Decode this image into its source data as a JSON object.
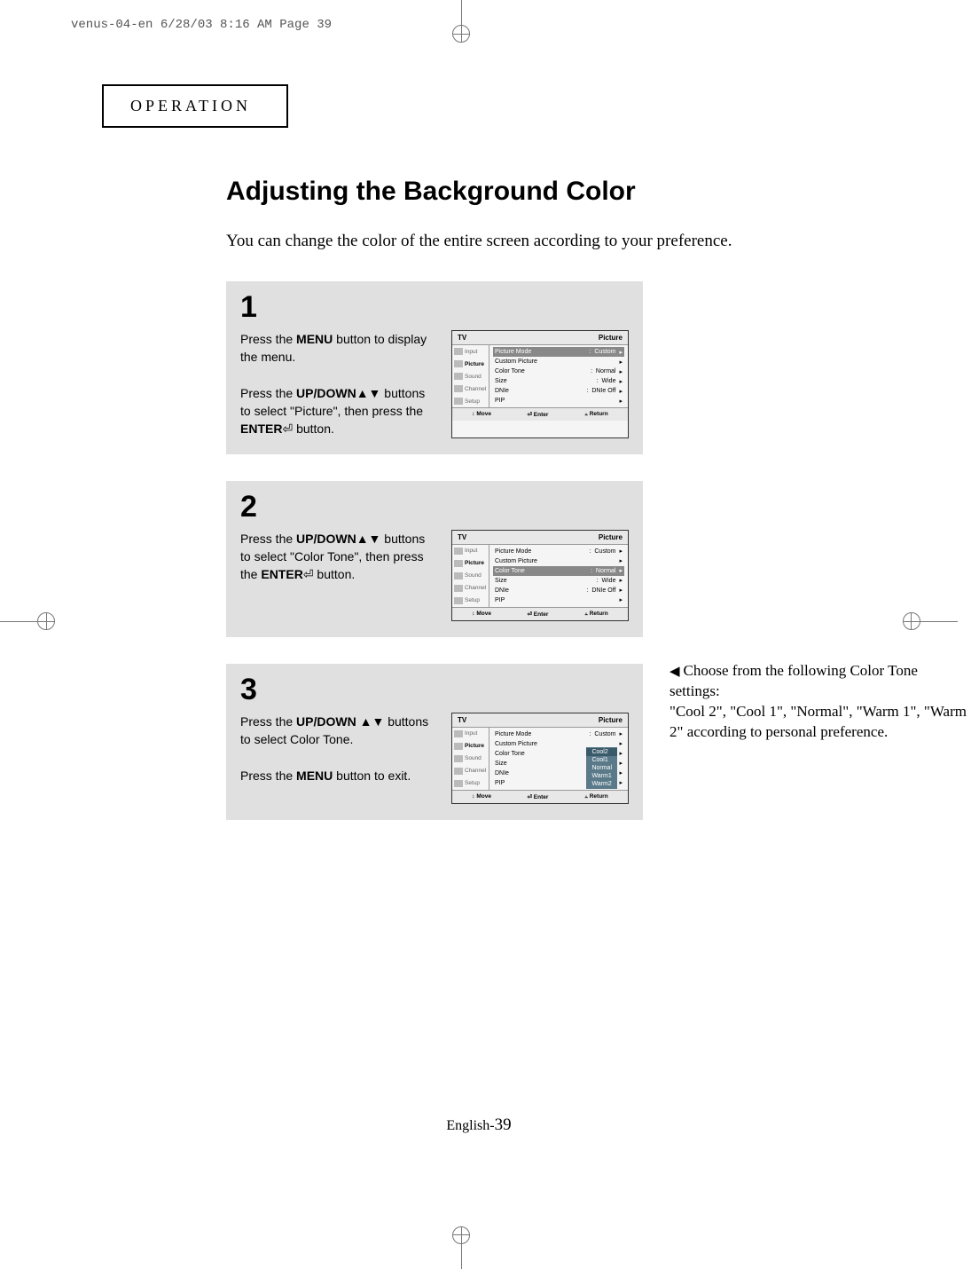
{
  "crop_header": "venus-04-en  6/28/03 8:16 AM  Page 39",
  "section_header": "OPERATION",
  "main_title": "Adjusting the Background Color",
  "intro": "You can change the color of the entire screen according to your preference.",
  "steps": [
    {
      "num": "1",
      "text_parts": [
        "Press the ",
        "MENU",
        " button to display the menu.",
        "br",
        "br",
        "Press the ",
        "UP/DOWN",
        "▲▼ buttons to select \"Picture\", then press the ",
        "ENTER",
        "⏎ button."
      ],
      "osd": {
        "title_left": "TV",
        "title_right": "Picture",
        "sidebar": [
          {
            "label": "Input",
            "icon": "input"
          },
          {
            "label": "Picture",
            "icon": "picture",
            "active": true
          },
          {
            "label": "Sound",
            "icon": "sound"
          },
          {
            "label": "Channel",
            "icon": "channel"
          },
          {
            "label": "Setup",
            "icon": "setup"
          }
        ],
        "rows": [
          {
            "label": "Picture Mode",
            "value": "Custom",
            "hl": true
          },
          {
            "label": "Custom Picture",
            "value": ""
          },
          {
            "label": "Color Tone",
            "value": "Normal"
          },
          {
            "label": "Size",
            "value": "Wide"
          },
          {
            "label": "DNIe",
            "value": "DNIe Off"
          },
          {
            "label": "PIP",
            "value": ""
          }
        ],
        "footer": [
          "↕ Move",
          "⏎ Enter",
          "⫠ Return"
        ]
      }
    },
    {
      "num": "2",
      "text_parts": [
        "Press the ",
        "UP/DOWN",
        "▲▼ buttons to select \"Color Tone\", then press the ",
        "ENTER",
        "⏎ button."
      ],
      "osd": {
        "title_left": "TV",
        "title_right": "Picture",
        "sidebar": [
          {
            "label": "Input",
            "icon": "input"
          },
          {
            "label": "Picture",
            "icon": "picture",
            "active": true
          },
          {
            "label": "Sound",
            "icon": "sound"
          },
          {
            "label": "Channel",
            "icon": "channel"
          },
          {
            "label": "Setup",
            "icon": "setup"
          }
        ],
        "rows": [
          {
            "label": "Picture Mode",
            "value": "Custom"
          },
          {
            "label": "Custom Picture",
            "value": ""
          },
          {
            "label": "Color Tone",
            "value": "Normal",
            "hl": true
          },
          {
            "label": "Size",
            "value": "Wide"
          },
          {
            "label": "DNIe",
            "value": "DNIe Off"
          },
          {
            "label": "PIP",
            "value": ""
          }
        ],
        "footer": [
          "↕ Move",
          "⏎ Enter",
          "⫠ Return"
        ]
      }
    },
    {
      "num": "3",
      "text_parts": [
        "Press the ",
        "UP/DOWN",
        " ▲▼ buttons to select Color Tone.",
        "br",
        "br",
        "Press the ",
        "MENU",
        " button to exit."
      ],
      "osd": {
        "title_left": "TV",
        "title_right": "Picture",
        "sidebar": [
          {
            "label": "Input",
            "icon": "input"
          },
          {
            "label": "Picture",
            "icon": "picture",
            "active": true
          },
          {
            "label": "Sound",
            "icon": "sound"
          },
          {
            "label": "Channel",
            "icon": "channel"
          },
          {
            "label": "Setup",
            "icon": "setup"
          }
        ],
        "rows": [
          {
            "label": "Picture Mode",
            "value": "Custom"
          },
          {
            "label": "Custom Picture",
            "value": ""
          },
          {
            "label": "Color Tone",
            "value": ""
          },
          {
            "label": "Size",
            "value": ""
          },
          {
            "label": "DNIe",
            "value": ""
          },
          {
            "label": "PIP",
            "value": ""
          }
        ],
        "dropdown": {
          "items": [
            "Cool2",
            "Cool1",
            "Normal",
            "Warm1",
            "Warm2"
          ],
          "selected": 0
        },
        "footer": [
          "↕ Move",
          "⏎ Enter",
          "⫠ Return"
        ]
      }
    }
  ],
  "side_note": "Choose from the following Color Tone settings:\n\"Cool 2\", \"Cool 1\", \"Normal\", \"Warm 1\", \"Warm 2\" according to personal preference.",
  "footer_label": "English-",
  "footer_num": "39",
  "colors": {
    "step_bg": "#e0e0e0",
    "osd_border": "#333333",
    "osd_hl": "#888888",
    "dropdown_bg": "#5a7a8a",
    "dropdown_sel": "#3a5a6a"
  }
}
